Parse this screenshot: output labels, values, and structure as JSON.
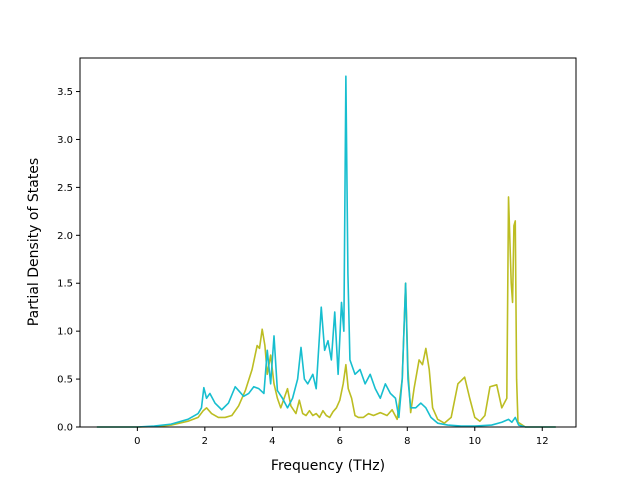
{
  "chart_data": {
    "type": "line",
    "title": "",
    "xlabel": "Frequency (THz)",
    "ylabel": "Partial Density of States",
    "xlim": [
      -1.7,
      13.0
    ],
    "ylim": [
      0.0,
      3.85
    ],
    "xticks": [
      0,
      2,
      4,
      6,
      8,
      10,
      12
    ],
    "xtick_labels": [
      "0",
      "2",
      "4",
      "6",
      "8",
      "10",
      "12"
    ],
    "yticks": [
      0.0,
      0.5,
      1.0,
      1.5,
      2.0,
      2.5,
      3.0,
      3.5
    ],
    "ytick_labels": [
      "0.0",
      "0.5",
      "1.0",
      "1.5",
      "2.0",
      "2.5",
      "3.0",
      "3.5"
    ],
    "grid": false,
    "legend": "none",
    "series": [
      {
        "color": "#bcbd22",
        "points": [
          [
            -1.2,
            0.0
          ],
          [
            0.0,
            0.0
          ],
          [
            0.5,
            0.005
          ],
          [
            1.0,
            0.02
          ],
          [
            1.5,
            0.06
          ],
          [
            1.8,
            0.1
          ],
          [
            1.95,
            0.17
          ],
          [
            2.05,
            0.2
          ],
          [
            2.2,
            0.14
          ],
          [
            2.4,
            0.1
          ],
          [
            2.6,
            0.1
          ],
          [
            2.8,
            0.12
          ],
          [
            3.0,
            0.22
          ],
          [
            3.2,
            0.38
          ],
          [
            3.4,
            0.6
          ],
          [
            3.55,
            0.85
          ],
          [
            3.62,
            0.82
          ],
          [
            3.7,
            1.02
          ],
          [
            3.78,
            0.85
          ],
          [
            3.85,
            0.55
          ],
          [
            3.95,
            0.75
          ],
          [
            4.05,
            0.45
          ],
          [
            4.15,
            0.3
          ],
          [
            4.25,
            0.2
          ],
          [
            4.35,
            0.3
          ],
          [
            4.45,
            0.4
          ],
          [
            4.55,
            0.22
          ],
          [
            4.7,
            0.14
          ],
          [
            4.8,
            0.28
          ],
          [
            4.9,
            0.14
          ],
          [
            5.0,
            0.12
          ],
          [
            5.1,
            0.17
          ],
          [
            5.2,
            0.12
          ],
          [
            5.3,
            0.14
          ],
          [
            5.4,
            0.1
          ],
          [
            5.5,
            0.17
          ],
          [
            5.6,
            0.12
          ],
          [
            5.7,
            0.1
          ],
          [
            5.8,
            0.16
          ],
          [
            5.9,
            0.2
          ],
          [
            6.0,
            0.28
          ],
          [
            6.1,
            0.45
          ],
          [
            6.18,
            0.65
          ],
          [
            6.25,
            0.4
          ],
          [
            6.35,
            0.3
          ],
          [
            6.45,
            0.12
          ],
          [
            6.55,
            0.1
          ],
          [
            6.7,
            0.1
          ],
          [
            6.85,
            0.14
          ],
          [
            7.0,
            0.12
          ],
          [
            7.2,
            0.15
          ],
          [
            7.4,
            0.12
          ],
          [
            7.55,
            0.18
          ],
          [
            7.7,
            0.08
          ],
          [
            7.85,
            0.5
          ],
          [
            7.95,
            1.5
          ],
          [
            8.02,
            0.6
          ],
          [
            8.1,
            0.15
          ],
          [
            8.2,
            0.4
          ],
          [
            8.35,
            0.7
          ],
          [
            8.45,
            0.65
          ],
          [
            8.55,
            0.82
          ],
          [
            8.65,
            0.6
          ],
          [
            8.75,
            0.2
          ],
          [
            8.9,
            0.08
          ],
          [
            9.1,
            0.04
          ],
          [
            9.3,
            0.1
          ],
          [
            9.5,
            0.45
          ],
          [
            9.7,
            0.52
          ],
          [
            9.85,
            0.3
          ],
          [
            10.0,
            0.1
          ],
          [
            10.15,
            0.06
          ],
          [
            10.3,
            0.12
          ],
          [
            10.45,
            0.42
          ],
          [
            10.65,
            0.44
          ],
          [
            10.8,
            0.2
          ],
          [
            10.95,
            0.3
          ],
          [
            11.0,
            2.4
          ],
          [
            11.08,
            1.5
          ],
          [
            11.12,
            1.3
          ],
          [
            11.16,
            2.1
          ],
          [
            11.2,
            2.15
          ],
          [
            11.24,
            0.5
          ],
          [
            11.28,
            0.05
          ],
          [
            11.5,
            0.0
          ],
          [
            12.0,
            0.0
          ],
          [
            12.4,
            0.0
          ]
        ]
      },
      {
        "color": "#17becf",
        "points": [
          [
            -1.2,
            0.0
          ],
          [
            0.0,
            0.0
          ],
          [
            0.5,
            0.01
          ],
          [
            1.0,
            0.03
          ],
          [
            1.5,
            0.08
          ],
          [
            1.8,
            0.14
          ],
          [
            1.9,
            0.2
          ],
          [
            1.97,
            0.41
          ],
          [
            2.05,
            0.3
          ],
          [
            2.15,
            0.35
          ],
          [
            2.3,
            0.25
          ],
          [
            2.5,
            0.18
          ],
          [
            2.7,
            0.25
          ],
          [
            2.9,
            0.42
          ],
          [
            3.0,
            0.38
          ],
          [
            3.15,
            0.32
          ],
          [
            3.3,
            0.35
          ],
          [
            3.45,
            0.42
          ],
          [
            3.6,
            0.4
          ],
          [
            3.75,
            0.35
          ],
          [
            3.85,
            0.8
          ],
          [
            3.95,
            0.45
          ],
          [
            4.05,
            0.95
          ],
          [
            4.15,
            0.38
          ],
          [
            4.3,
            0.3
          ],
          [
            4.45,
            0.2
          ],
          [
            4.6,
            0.3
          ],
          [
            4.75,
            0.5
          ],
          [
            4.85,
            0.83
          ],
          [
            4.95,
            0.5
          ],
          [
            5.05,
            0.45
          ],
          [
            5.2,
            0.55
          ],
          [
            5.3,
            0.4
          ],
          [
            5.45,
            1.25
          ],
          [
            5.55,
            0.8
          ],
          [
            5.65,
            0.9
          ],
          [
            5.75,
            0.7
          ],
          [
            5.85,
            1.2
          ],
          [
            5.95,
            0.55
          ],
          [
            6.05,
            1.3
          ],
          [
            6.12,
            1.0
          ],
          [
            6.18,
            3.66
          ],
          [
            6.24,
            1.6
          ],
          [
            6.3,
            0.7
          ],
          [
            6.45,
            0.55
          ],
          [
            6.6,
            0.6
          ],
          [
            6.75,
            0.45
          ],
          [
            6.9,
            0.55
          ],
          [
            7.05,
            0.4
          ],
          [
            7.2,
            0.3
          ],
          [
            7.35,
            0.45
          ],
          [
            7.5,
            0.35
          ],
          [
            7.65,
            0.3
          ],
          [
            7.75,
            0.1
          ],
          [
            7.85,
            0.5
          ],
          [
            7.95,
            1.5
          ],
          [
            8.02,
            0.5
          ],
          [
            8.1,
            0.2
          ],
          [
            8.25,
            0.2
          ],
          [
            8.4,
            0.25
          ],
          [
            8.55,
            0.2
          ],
          [
            8.7,
            0.1
          ],
          [
            8.9,
            0.04
          ],
          [
            9.2,
            0.02
          ],
          [
            9.6,
            0.01
          ],
          [
            10.0,
            0.01
          ],
          [
            10.5,
            0.02
          ],
          [
            10.8,
            0.05
          ],
          [
            11.0,
            0.08
          ],
          [
            11.1,
            0.05
          ],
          [
            11.2,
            0.1
          ],
          [
            11.3,
            0.02
          ],
          [
            11.5,
            0.0
          ],
          [
            12.0,
            0.0
          ],
          [
            12.4,
            0.0
          ]
        ]
      }
    ]
  }
}
